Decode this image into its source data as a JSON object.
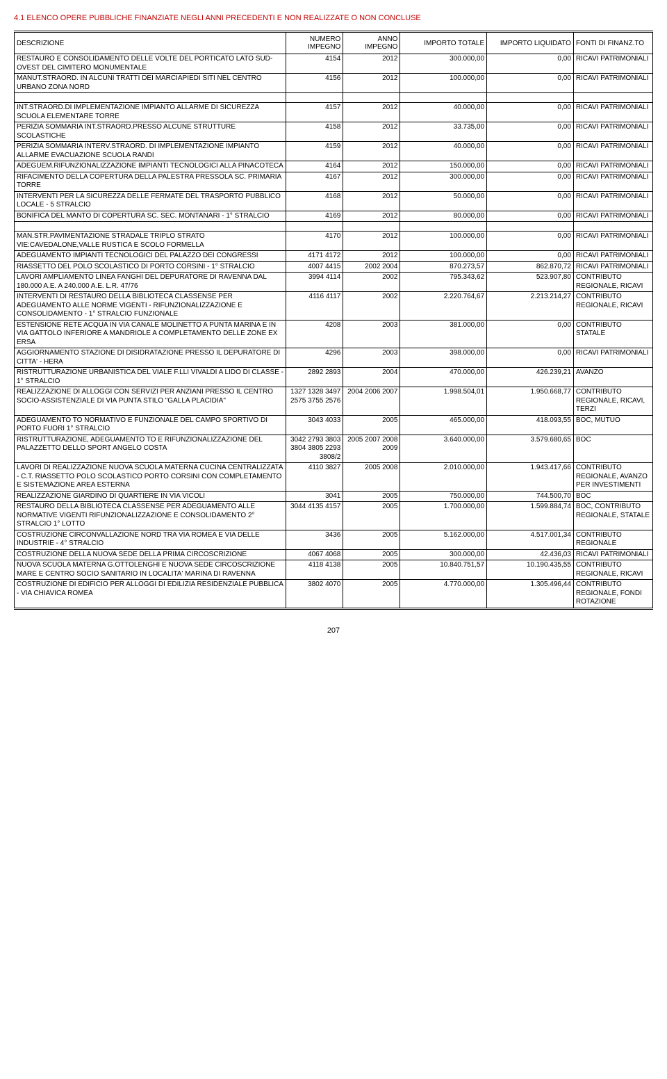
{
  "page": {
    "title": "4.1 ELENCO OPERE PUBBLICHE FINANZIATE NEGLI ANNI PRECEDENTI E NON REALIZZATE O NON CONCLUSE",
    "pageNumber": "207",
    "titleColor": "#c00000"
  },
  "columns": {
    "descrizione": "DESCRIZIONE",
    "numeroImpegno": "NUMERO IMPEGNO",
    "annoImpegno": "ANNO IMPEGNO",
    "importoTotale": "IMPORTO TOTALE",
    "importoLiquidato": "IMPORTO LIQUIDATO",
    "fontiFinanz": "FONTI DI FINANZ.TO"
  },
  "rows": [
    {
      "desc": "RESTAURO E CONSOLIDAMENTO DELLE VOLTE DEL PORTICATO LATO SUD-OVEST DEL CIMITERO MONUMENTALE",
      "num": "4154",
      "anno": "2012",
      "tot": "300.000,00",
      "liq": "0,00",
      "fonti": "RICAVI PATRIMONIALI",
      "sep": true
    },
    {
      "desc": "MANUT.STRAORD. IN ALCUNI TRATTI DEI MARCIAPIEDI SITI NEL CENTRO URBANO ZONA NORD",
      "num": "4156",
      "anno": "2012",
      "tot": "100.000,00",
      "liq": "0,00",
      "fonti": "RICAVI PATRIMONIALI",
      "sep": true
    },
    {
      "desc": "",
      "num": "",
      "anno": "",
      "tot": "",
      "liq": "",
      "fonti": "",
      "spacer": true,
      "sep": true
    },
    {
      "desc": "INT.STRAORD.DI IMPLEMENTAZIONE IMPIANTO ALLARME DI SICUREZZA SCUOLA ELEMENTARE TORRE",
      "num": "4157",
      "anno": "2012",
      "tot": "40.000,00",
      "liq": "0,00",
      "fonti": "RICAVI PATRIMONIALI",
      "sep": true
    },
    {
      "desc": "PERIZIA SOMMARIA INT.STRAORD.PRESSO ALCUNE STRUTTURE SCOLASTICHE",
      "num": "4158",
      "anno": "2012",
      "tot": "33.735,00",
      "liq": "0,00",
      "fonti": "RICAVI PATRIMONIALI",
      "sep": true
    },
    {
      "desc": "PERIZIA SOMMARIA INTERV.STRAORD. DI IMPLEMENTAZIONE IMPIANTO ALLARME EVACUAZIONE SCUOLA RANDI",
      "num": "4159",
      "anno": "2012",
      "tot": "40.000,00",
      "liq": "0,00",
      "fonti": "RICAVI PATRIMONIALI",
      "sep": true
    },
    {
      "desc": "ADEGUEM.RIFUNZIONALIZZAZIONE IMPIANTI TECNOLOGICI ALLA PINACOTECA",
      "num": "4164",
      "anno": "2012",
      "tot": "150.000,00",
      "liq": "0,00",
      "fonti": "RICAVI PATRIMONIALI",
      "sep": true
    },
    {
      "desc": "RIFACIMENTO DELLA COPERTURA DELLA PALESTRA PRESSOLA SC. PRIMARIA TORRE",
      "num": "4167",
      "anno": "2012",
      "tot": "300.000,00",
      "liq": "0,00",
      "fonti": "RICAVI PATRIMONIALI",
      "sep": true
    },
    {
      "desc": "INTERVENTI PER LA SICUREZZA DELLE FERMATE DEL TRASPORTO PUBBLICO LOCALE - 5 STRALCIO",
      "num": "4168",
      "anno": "2012",
      "tot": "50.000,00",
      "liq": "0,00",
      "fonti": "RICAVI PATRIMONIALI",
      "sep": true
    },
    {
      "desc": "BONIFICA DEL MANTO DI COPERTURA SC. SEC. MONTANARI - 1° STRALCIO",
      "num": "4169",
      "anno": "2012",
      "tot": "80.000,00",
      "liq": "0,00",
      "fonti": "RICAVI PATRIMONIALI",
      "sep": true
    },
    {
      "desc": "",
      "num": "",
      "anno": "",
      "tot": "",
      "liq": "",
      "fonti": "",
      "spacer": true,
      "sep": true
    },
    {
      "desc": "MAN.STR.PAVIMENTAZIONE STRADALE TRIPLO STRATO VIE:CAVEDALONE,VALLE RUSTICA E SCOLO FORMELLA",
      "num": "4170",
      "anno": "2012",
      "tot": "100.000,00",
      "liq": "0,00",
      "fonti": "RICAVI PATRIMONIALI",
      "sep": true
    },
    {
      "desc": "ADEGUAMENTO IMPIANTI TECNOLOGICI DEL PALAZZO DEI CONGRESSI",
      "num": "4171 4172",
      "anno": "2012",
      "tot": "100.000,00",
      "liq": "0,00",
      "fonti": "RICAVI PATRIMONIALI",
      "sep": true
    },
    {
      "desc": "RIASSETTO DEL POLO SCOLASTICO DI PORTO CORSINI - 1° STRALCIO",
      "num": "4007 4415",
      "anno": "2002 2004",
      "tot": "870.273,57",
      "liq": "862.870,72",
      "fonti": "RICAVI PATRIMONIALI",
      "sep": true
    },
    {
      "desc": "LAVORI AMPLIAMENTO LINEA FANGHI DEL DEPURATORE DI RAVENNA DAL 180.000 A.E. A 240.000 A.E. L.R. 47/76",
      "num": "3994 4114",
      "anno": "2002",
      "tot": "795.343,62",
      "liq": "523.907,80",
      "fonti": "CONTRIBUTO REGIONALE, RICAVI",
      "sep": true
    },
    {
      "desc": "INTERVENTI DI RESTAURO DELLA BIBLIOTECA CLASSENSE PER ADEGUAMENTO ALLE NORME VIGENTI - RIFUNZIONALIZZAZIONE E CONSOLIDAMENTO - 1° STRALCIO FUNZIONALE",
      "num": "4116 4117",
      "anno": "2002",
      "tot": "2.220.764,67",
      "liq": "2.213.214,27",
      "fonti": "CONTRIBUTO REGIONALE, RICAVI",
      "sep": true
    },
    {
      "desc": "ESTENSIONE RETE ACQUA IN VIA CANALE MOLINETTO A PUNTA MARINA E IN VIA GATTOLO INFERIORE A MANDRIOLE A COMPLETAMENTO DELLE ZONE EX ERSA",
      "num": "4208",
      "anno": "2003",
      "tot": "381.000,00",
      "liq": "0,00",
      "fonti": "CONTRIBUTO STATALE",
      "sep": true
    },
    {
      "desc": "AGGIORNAMENTO STAZIONE DI DISIDRATAZIONE PRESSO IL DEPURATORE DI CITTA' - HERA",
      "num": "4296",
      "anno": "2003",
      "tot": "398.000,00",
      "liq": "0,00",
      "fonti": "RICAVI PATRIMONIALI",
      "sep": true
    },
    {
      "desc": "RISTRUTTURAZIONE URBANISTICA DEL VIALE F.LLI VIVALDI A LIDO DI CLASSE - 1° STRALCIO",
      "num": "2892 2893",
      "anno": "2004",
      "tot": "470.000,00",
      "liq": "426.239,21",
      "fonti": "AVANZO",
      "sep": true
    },
    {
      "desc": "REALIZZAZIONE DI ALLOGGI CON SERVIZI PER ANZIANI PRESSO IL CENTRO SOCIO-ASSISTENZIALE DI VIA PUNTA STILO \"GALLA PLACIDIA\"",
      "num": "1327 1328 3497 2575 3755 2576",
      "anno": "2004 2006 2007",
      "tot": "1.998.504,01",
      "liq": "1.950.668,77",
      "fonti": "CONTRIBUTO REGIONALE, RICAVI, TERZI",
      "sep": true
    },
    {
      "desc": "ADEGUAMENTO TO NORMATIVO E FUNZIONALE DEL CAMPO SPORTIVO DI PORTO FUORI 1° STRALCIO",
      "num": "3043 4033",
      "anno": "2005",
      "tot": "465.000,00",
      "liq": "418.093,55",
      "fonti": "BOC, MUTUO",
      "sep": true
    },
    {
      "desc": "RISTRUTTURAZIONE, ADEGUAMENTO TO E RIFUNZIONALIZZAZIONE DEL PALAZZETTO DELLO SPORT ANGELO COSTA",
      "num": "3042 2793 3803 3804 3805 2293 3808/2",
      "anno": "2005 2007 2008 2009",
      "tot": "3.640.000,00",
      "liq": "3.579.680,65",
      "fonti": "BOC",
      "sep": true
    },
    {
      "desc": "LAVORI DI REALIZZAZIONE NUOVA SCUOLA MATERNA CUCINA CENTRALIZZATA - C.T. RIASSETTO POLO SCOLASTICO PORTO CORSINI CON COMPLETAMENTO E SISTEMAZIONE AREA ESTERNA",
      "num": "4110 3827",
      "anno": "2005 2008",
      "tot": "2.010.000,00",
      "liq": "1.943.417,66",
      "fonti": "CONTRIBUTO REGIONALE, AVANZO PER INVESTIMENTI",
      "sep": true
    },
    {
      "desc": "REALIZZAZIONE GIARDINO DI QUARTIERE IN VIA VICOLI",
      "num": "3041",
      "anno": "2005",
      "tot": "750.000,00",
      "liq": "744.500,70",
      "fonti": "BOC",
      "sep": true
    },
    {
      "desc": "RESTAURO DELLA BIBLIOTECA CLASSENSE PER ADEGUAMENTO ALLE NORMATIVE VIGENTI RIFUNZIONALIZZAZIONE E CONSOLIDAMENTO 2° STRALCIO 1° LOTTO",
      "num": "3044 4135 4157",
      "anno": "2005",
      "tot": "1.700.000,00",
      "liq": "1.599.884,74",
      "fonti": "BOC, CONTRIBUTO REGIONALE, STATALE",
      "sep": true
    },
    {
      "desc": "COSTRUZIONE CIRCONVALLAZIONE NORD TRA VIA ROMEA E VIA DELLE INDUSTRIE - 4° STRALCIO",
      "num": "3436",
      "anno": "2005",
      "tot": "5.162.000,00",
      "liq": "4.517.001,34",
      "fonti": "CONTRIBUTO REGIONALE",
      "sep": true
    },
    {
      "desc": "COSTRUZIONE DELLA NUOVA SEDE DELLA PRIMA CIRCOSCRIZIONE",
      "num": "4067 4068",
      "anno": "2005",
      "tot": "300.000,00",
      "liq": "42.436,03",
      "fonti": "RICAVI PATRIMONIALI",
      "sep": true
    },
    {
      "desc": "NUOVA SCUOLA MATERNA G.OTTOLENGHI E NUOVA SEDE CIRCOSCRIZIONE MARE E CENTRO SOCIO SANITARIO IN LOCALITA' MARINA DI RAVENNA",
      "num": "4118 4138",
      "anno": "2005",
      "tot": "10.840.751,57",
      "liq": "10.190.435,55",
      "fonti": "CONTRIBUTO REGIONALE, RICAVI",
      "sep": true
    },
    {
      "desc": "COSTRUZIONE DI EDIFICIO PER ALLOGGI DI EDILIZIA RESIDENZIALE PUBBLICA - VIA CHIAVICA ROMEA",
      "num": "3802 4070",
      "anno": "2005",
      "tot": "4.770.000,00",
      "liq": "1.305.496,44",
      "fonti": "CONTRIBUTO REGIONALE, FONDI ROTAZIONE",
      "dsep": true
    }
  ]
}
